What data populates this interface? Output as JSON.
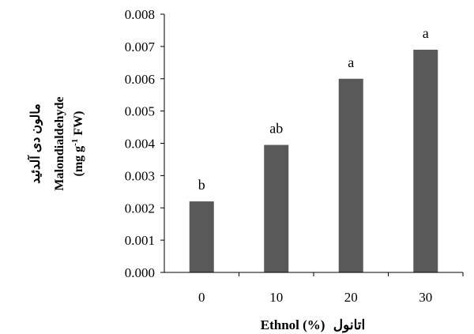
{
  "chart_data": {
    "type": "bar",
    "categories": [
      "0",
      "10",
      "20",
      "30"
    ],
    "values": [
      0.0022,
      0.00395,
      0.006,
      0.0069
    ],
    "significance_letters": [
      "b",
      "ab",
      "a",
      "a"
    ],
    "yticks": [
      "0.000",
      "0.001",
      "0.002",
      "0.003",
      "0.004",
      "0.005",
      "0.006",
      "0.007",
      "0.008"
    ],
    "ylim": [
      0,
      0.008
    ],
    "ylabel_fa": "مالون دی آلدئید",
    "ylabel_en": "Malondialdehyde",
    "ylabel_unit": "(mg g-1 FW)",
    "xlabel_en": "Ethnol (%)",
    "xlabel_fa": "اتانول",
    "bar_color": "#595959",
    "grid": false
  }
}
